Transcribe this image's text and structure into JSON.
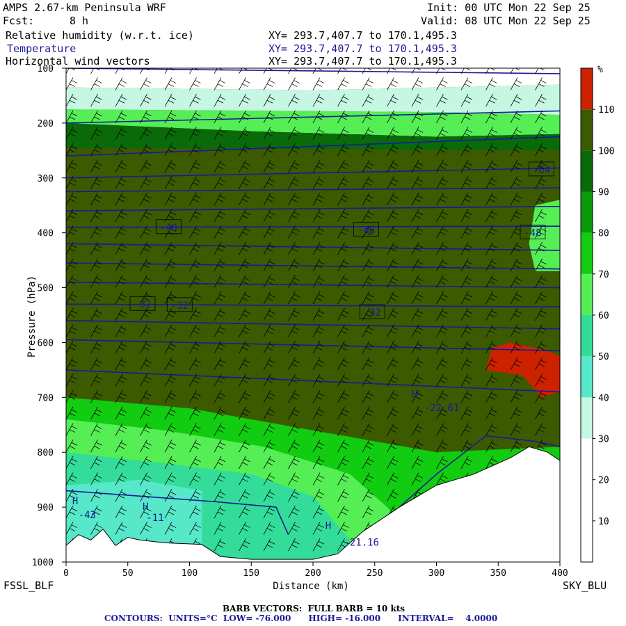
{
  "header": {
    "model": "AMPS 2.67-km Peninsula WRF",
    "init": "Init: 00 UTC Mon 22 Sep 25",
    "fcst_label": "Fcst:",
    "fcst_value": "8 h",
    "valid": "Valid: 08 UTC Mon 22 Sep 25",
    "fields": [
      {
        "name": "Relative humidity (w.r.t. ice)",
        "xy": "XY= 293.7,407.7 to 170.1,495.3",
        "color": "#000000"
      },
      {
        "name": "Temperature",
        "xy": "XY= 293.7,407.7 to 170.1,495.3",
        "color": "#1a1a99"
      },
      {
        "name": "Horizontal wind vectors",
        "xy": "XY= 293.7,407.7 to 170.1,495.3",
        "color": "#000000"
      }
    ]
  },
  "footer": {
    "left_point": "FSSL_BLF",
    "right_point": "SKY_BLU",
    "barb_note": "BARB VECTORS:  FULL BARB = 10 kts",
    "contour_note": "CONTOURS:  UNITS=°C  LOW= -76.000      HIGH= -16.000      INTERVAL=    4.0000"
  },
  "colors": {
    "terrain": "#ffffff",
    "contour": "#1a1a99",
    "rh_bands": [
      "#ffffff",
      "#ffffff",
      "#ffffff",
      "#c6f7e2",
      "#56e8c8",
      "#33dd99",
      "#55ee55",
      "#11cc11",
      "#0a9a0a",
      "#0a6a0a",
      "#3c5a00",
      "#cc2200"
    ]
  },
  "chart_data": {
    "type": "heatmap",
    "title": "Relative humidity (w.r.t. ice)",
    "xlabel": "Distance (km)",
    "ylabel": "Pressure (hPa)",
    "xlim": [
      0,
      400
    ],
    "ylim": [
      1000,
      100
    ],
    "x_ticks": [
      0,
      50,
      100,
      150,
      200,
      250,
      300,
      350,
      400
    ],
    "y_ticks": [
      100,
      200,
      300,
      400,
      500,
      600,
      700,
      800,
      900,
      1000
    ],
    "colorbar": {
      "unit": "%",
      "levels": [
        0,
        10,
        20,
        30,
        40,
        50,
        60,
        70,
        80,
        90,
        100,
        110,
        120
      ],
      "labels": [
        10,
        20,
        30,
        40,
        50,
        60,
        70,
        80,
        90,
        100,
        110
      ]
    },
    "temperature_contour_labels": [
      {
        "text": "-64",
        "x": 385,
        "p": 285
      },
      {
        "text": "-48",
        "x": 83,
        "p": 390
      },
      {
        "text": "-48",
        "x": 243,
        "p": 395
      },
      {
        "text": "-48",
        "x": 378,
        "p": 400
      },
      {
        "text": "-32",
        "x": 62,
        "p": 530
      },
      {
        "text": "-32",
        "x": 92,
        "p": 532
      },
      {
        "text": "-32",
        "x": 248,
        "p": 545
      }
    ],
    "extrema_labels": [
      {
        "text": "H",
        "x": 280,
        "p": 700
      },
      {
        "text": "-22.61",
        "x": 290,
        "p": 725
      },
      {
        "text": "H",
        "x": 5,
        "p": 895
      },
      {
        "text": "-43",
        "x": 10,
        "p": 920
      },
      {
        "text": "H",
        "x": 62,
        "p": 905
      },
      {
        "text": "-11",
        "x": 65,
        "p": 925
      },
      {
        "text": "H",
        "x": 210,
        "p": 940
      },
      {
        "text": "-21.16",
        "x": 225,
        "p": 970
      }
    ],
    "temperature_contours_c": [
      -76,
      -72,
      -68,
      -64,
      -60,
      -56,
      -52,
      -48,
      -44,
      -40,
      -36,
      -32,
      -28,
      -24,
      -20,
      -16
    ],
    "wind_barbs": "horizontal wind vectors, full barb = 10 kts"
  }
}
